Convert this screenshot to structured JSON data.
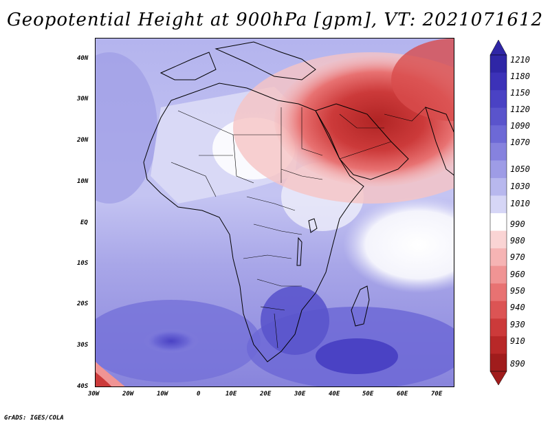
{
  "title": "Geopotential Height at 900hPa [gpm], VT: 2021071612",
  "credit": "GrADS: IGES/COLA",
  "lat_labels": [
    "40N",
    "30N",
    "20N",
    "10N",
    "EQ",
    "10S",
    "20S",
    "30S",
    "40S"
  ],
  "lon_labels": [
    "30W",
    "20W",
    "10W",
    "0",
    "10E",
    "20E",
    "30E",
    "40E",
    "50E",
    "60E",
    "70E"
  ],
  "colorbar": {
    "labels": [
      "1210",
      "1180",
      "1150",
      "1120",
      "1090",
      "1070",
      "1050",
      "1030",
      "1010",
      "990",
      "980",
      "970",
      "960",
      "950",
      "940",
      "930",
      "910",
      "890"
    ],
    "colors": [
      "#2f26a6",
      "#3c32b8",
      "#4a42c4",
      "#5a54cc",
      "#6d69d6",
      "#8682de",
      "#9e9ce6",
      "#b8b8ee",
      "#d6d6f6",
      "#ffffff",
      "#fad4d4",
      "#f6b4b4",
      "#f09494",
      "#e87272",
      "#dc5454",
      "#cc3a3a",
      "#b82828",
      "#a01c1c"
    ]
  },
  "map_colors": {
    "ocean_south": "#9a98e4",
    "ocean_deep": "#4a42c4",
    "ocean_north_atlantic": "#aaa8ea",
    "sahara": "#e4e4f8",
    "heat_low_core": "#b02424",
    "heat_low_mid": "#d84c4c",
    "heat_low_edge": "#f6b8b8",
    "indian_ocean": "#f4f4fc"
  }
}
